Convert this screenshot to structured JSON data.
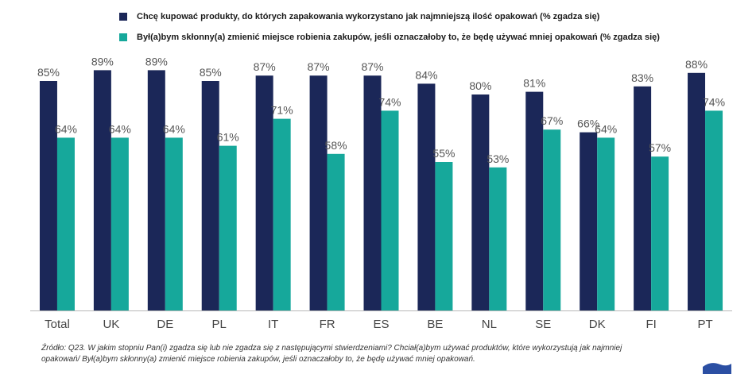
{
  "colors": {
    "series1": "#1b2758",
    "series2": "#16a89b",
    "axis": "#b8b8b8",
    "logo": "#2b4fa3"
  },
  "chart_data": {
    "type": "bar",
    "title": "",
    "xlabel": "",
    "ylabel": "",
    "ylim": [
      0,
      100
    ],
    "grid": false,
    "legend_position": "top",
    "categories": [
      "Total",
      "UK",
      "DE",
      "PL",
      "IT",
      "FR",
      "ES",
      "BE",
      "NL",
      "SE",
      "DK",
      "FI",
      "PT"
    ],
    "series": [
      {
        "name": "Chcę kupować produkty, do których zapakowania wykorzystano jak najmniejszą ilość opakowań (% zgadza się)",
        "values": [
          85,
          89,
          89,
          85,
          87,
          87,
          87,
          84,
          80,
          81,
          66,
          83,
          88
        ],
        "labels": [
          "85%",
          "89%",
          "89%",
          "85%",
          "87%",
          "87%",
          "87%",
          "84%",
          "80%",
          "81%",
          "66%",
          "83%",
          "88%"
        ]
      },
      {
        "name": "Był(a)bym skłonny(a) zmienić miejsce robienia zakupów, jeśli oznaczałoby to, że będę używać mniej opakowań (% zgadza się)",
        "values": [
          64,
          64,
          64,
          61,
          71,
          58,
          74,
          55,
          53,
          67,
          64,
          57,
          74
        ],
        "labels": [
          "64%",
          "64%",
          "64%",
          "61%",
          "71%",
          "58%",
          "74%",
          "55%",
          "53%",
          "67%",
          "64%",
          "57%",
          "74%"
        ]
      }
    ]
  },
  "source_note": "Źródło: Q23. W jakim stopniu Pan(i) zgadza się lub nie zgadza się z następującymi stwierdzeniami? Chciał(a)bym używać produktów, które wykorzystują jak najmniej opakowań/ Był(a)bym skłonny(a) zmienić miejsce robienia zakupów, jeśli oznaczałoby to, że będę używać mniej opakowań."
}
